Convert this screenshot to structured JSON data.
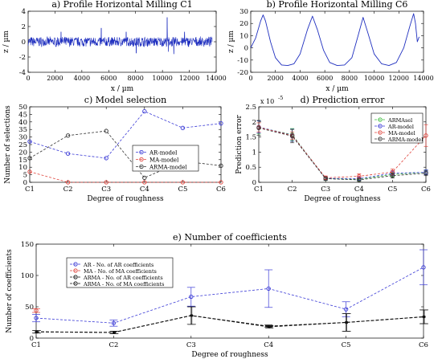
{
  "chart_data": [
    {
      "id": "a",
      "type": "line",
      "title": "a) Profile Horizontal Milling C1",
      "xlabel": "x / µm",
      "ylabel": "z / µm",
      "xlim": [
        0,
        14000
      ],
      "ylim": [
        -4,
        4
      ],
      "xticks": [
        0,
        2000,
        4000,
        6000,
        8000,
        10000,
        12000,
        14000
      ],
      "yticks": [
        -4,
        -2,
        0,
        2,
        4
      ],
      "grid": false,
      "color": "#1f2fbf",
      "description_values": {
        "mean": 0,
        "typical_amplitude": 0.5,
        "spikes": [
          [
            2450,
            1.3
          ],
          [
            5450,
            1.8
          ],
          [
            7300,
            1.3
          ],
          [
            8050,
            -1.5
          ],
          [
            10350,
            3.2
          ],
          [
            10450,
            -1.3
          ],
          [
            10850,
            -1.6
          ],
          [
            11650,
            1.3
          ]
        ]
      }
    },
    {
      "id": "b",
      "type": "line",
      "title": "b) Profile Horizontal Milling C6",
      "xlabel": "x / µm",
      "ylabel": "z / µm",
      "xlim": [
        0,
        14000
      ],
      "ylim": [
        -20,
        30
      ],
      "xticks": [
        0,
        2000,
        4000,
        6000,
        8000,
        10000,
        12000,
        14000
      ],
      "yticks": [
        -20,
        -10,
        0,
        10,
        20,
        30
      ],
      "grid": false,
      "color": "#1f2fbf",
      "points": [
        [
          0,
          0
        ],
        [
          400,
          8
        ],
        [
          800,
          22
        ],
        [
          1000,
          27
        ],
        [
          1200,
          22
        ],
        [
          1600,
          5
        ],
        [
          2000,
          -8
        ],
        [
          2500,
          -14
        ],
        [
          3000,
          -14.5
        ],
        [
          3500,
          -13
        ],
        [
          4000,
          -5
        ],
        [
          4600,
          15
        ],
        [
          5000,
          26
        ],
        [
          5400,
          15
        ],
        [
          5900,
          -2
        ],
        [
          6400,
          -12
        ],
        [
          7000,
          -14.5
        ],
        [
          7600,
          -14
        ],
        [
          8200,
          -8
        ],
        [
          8700,
          10
        ],
        [
          9100,
          25
        ],
        [
          9500,
          12
        ],
        [
          10000,
          -5
        ],
        [
          10600,
          -13
        ],
        [
          11200,
          -14.5
        ],
        [
          11800,
          -12
        ],
        [
          12400,
          0
        ],
        [
          12900,
          18
        ],
        [
          13200,
          28
        ],
        [
          13350,
          20
        ],
        [
          13500,
          5
        ],
        [
          13650,
          9
        ]
      ]
    },
    {
      "id": "c",
      "type": "line",
      "title": "c) Model selection",
      "xlabel": "Degree of roughness",
      "ylabel": "Number of selections",
      "categories": [
        "C1",
        "C2",
        "C3",
        "C4",
        "C5",
        "C6"
      ],
      "ylim": [
        0,
        50
      ],
      "yticks": [
        0,
        5,
        10,
        15,
        20,
        25,
        30,
        35,
        40,
        45,
        50
      ],
      "legend_position": "right",
      "grid": false,
      "series": [
        {
          "name": "AR-model",
          "color": "#3a3ad6",
          "values": [
            27,
            19,
            16,
            47,
            36,
            39
          ]
        },
        {
          "name": "MA-model",
          "color": "#e0443c",
          "values": [
            7,
            0,
            0,
            0,
            0,
            0
          ]
        },
        {
          "name": "ARMA-model",
          "color": "#333333",
          "values": [
            16,
            31,
            34,
            3,
            14,
            11
          ]
        }
      ]
    },
    {
      "id": "d",
      "type": "line",
      "title": "d) Prediction error",
      "xlabel": "Degree of roughness",
      "ylabel": "Prediction error",
      "y_exponent_label": "x 10",
      "y_exponent_power": "-5",
      "categories": [
        "C1",
        "C2",
        "C3",
        "C4",
        "C5",
        "C6"
      ],
      "ylim": [
        0,
        2.5
      ],
      "yticks": [
        0,
        0.5,
        1,
        1.5,
        2,
        2.5
      ],
      "legend_position": "top-right",
      "grid": false,
      "series": [
        {
          "name": "ARMAsel",
          "color": "#3fbf3f",
          "values": [
            1.82,
            1.58,
            0.12,
            0.1,
            0.26,
            0.33
          ],
          "err": [
            0.22,
            0.2,
            0.06,
            0.05,
            0.08,
            0.08
          ]
        },
        {
          "name": "AR-model",
          "color": "#3a3ad6",
          "values": [
            1.83,
            1.56,
            0.13,
            0.12,
            0.3,
            0.33
          ],
          "err": [
            0.2,
            0.2,
            0.05,
            0.05,
            0.08,
            0.08
          ]
        },
        {
          "name": "MA-model",
          "color": "#e0443c",
          "values": [
            1.82,
            1.55,
            0.15,
            0.2,
            0.34,
            1.55
          ],
          "err": [
            0.15,
            0.12,
            0.06,
            0.08,
            0.1,
            0.36
          ]
        },
        {
          "name": "ARMA-model",
          "color": "#333333",
          "values": [
            1.8,
            1.53,
            0.12,
            0.08,
            0.22,
            0.3
          ],
          "err": [
            0.25,
            0.22,
            0.06,
            0.05,
            0.08,
            0.08
          ]
        }
      ]
    },
    {
      "id": "e",
      "type": "line",
      "title": "e) Number of coefficients",
      "xlabel": "Degree of roughness",
      "ylabel": "Number of coefficients",
      "categories": [
        "C1",
        "C2",
        "C3",
        "C4",
        "C5",
        "C6"
      ],
      "ylim": [
        0,
        150
      ],
      "yticks": [
        0,
        50,
        100,
        150
      ],
      "legend_position": "top-left",
      "grid": false,
      "series": [
        {
          "name": "AR - No. of AR coefficients",
          "color": "#3a3ad6",
          "values": [
            32,
            24,
            66,
            79,
            46,
            113
          ],
          "err": [
            6,
            5,
            15,
            30,
            12,
            28
          ]
        },
        {
          "name": "MA - No. of MA coefficients",
          "color": "#e0443c",
          "values": [
            44,
            null,
            null,
            null,
            null,
            null
          ],
          "err": [
            3,
            null,
            null,
            null,
            null,
            null
          ]
        },
        {
          "name": "ARMA - No. of AR coefficients",
          "color": "#111111",
          "values": [
            10,
            9,
            36,
            19,
            25,
            34
          ],
          "err": [
            2,
            2,
            14,
            2,
            14,
            11
          ]
        },
        {
          "name": "ARMA - No. of MA coefficients",
          "color": "#111111",
          "values": [
            10,
            9,
            36,
            18,
            25,
            34
          ],
          "err": [
            2,
            2,
            14,
            2,
            14,
            11
          ]
        }
      ]
    }
  ]
}
